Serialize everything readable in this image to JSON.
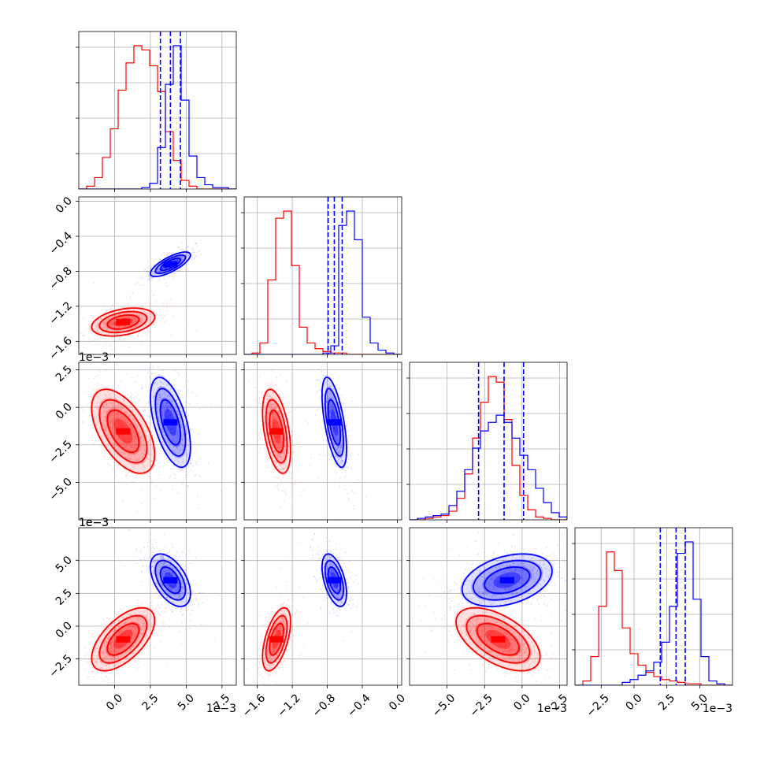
{
  "colors": {
    "red": "#ff0000",
    "blue": "#0000ff",
    "grid": "#b0b0b0",
    "axis": "#000000"
  },
  "chart_data": {
    "type": "corner",
    "parameters": [
      {
        "range": [
          -2.5,
          8.5
        ],
        "ticks": [
          0.0,
          2.5,
          5.0,
          7.5
        ],
        "tick_labels": [
          "0.0",
          "2.5",
          "5.0",
          "7.5"
        ]
      },
      {
        "range": [
          -1.75,
          0.05
        ],
        "ticks": [
          -1.6,
          -1.2,
          -0.8,
          -0.4,
          0.0
        ],
        "tick_labels": [
          "−1.6",
          "−1.2",
          "−0.8",
          "−0.4",
          "0.0"
        ]
      },
      {
        "range": [
          -7.5,
          3.0
        ],
        "ticks": [
          -5.0,
          -2.5,
          0.0,
          2.5
        ],
        "tick_labels": [
          "−5.0",
          "−2.5",
          "0.0",
          "2.5"
        ]
      },
      {
        "range": [
          -4.5,
          7.5
        ],
        "ticks": [
          -2.5,
          0.0,
          2.5,
          5.0
        ],
        "tick_labels": [
          "−2.5",
          "0.0",
          "2.5",
          "5.0"
        ]
      }
    ],
    "offset_label": "1e−3",
    "series": [
      {
        "color": "#ff0000",
        "mean": [
          0.6,
          -1.38,
          -1.6,
          -1.0
        ],
        "std": [
          1.1,
          0.08,
          1.4,
          1.2
        ],
        "hist": [
          {
            "bin_start": -2.5,
            "bin_width": 0.55,
            "counts": [
              0,
              2,
              8,
              22,
              42,
              69,
              88,
              100,
              97,
              86,
              68,
              40,
              20,
              6,
              2,
              0,
              0,
              0,
              0,
              0
            ]
          },
          {
            "bin_start": -1.75,
            "bin_width": 0.09,
            "counts": [
              0,
              1,
              8,
              52,
              95,
              100,
              62,
              19,
              8,
              4,
              2,
              1,
              1,
              0,
              0,
              0,
              0,
              0,
              0,
              0
            ]
          },
          {
            "bin_start": -7.5,
            "bin_width": 0.525,
            "counts": [
              0,
              0,
              1,
              2,
              3,
              6,
              15,
              32,
              57,
              82,
              100,
              96,
              70,
              38,
              17,
              7,
              2,
              1,
              0,
              0
            ]
          },
          {
            "bin_start": -4.5,
            "bin_width": 0.6,
            "counts": [
              0,
              3,
              20,
              55,
              93,
              80,
              40,
              22,
              14,
              9,
              6,
              4,
              3,
              2,
              1,
              1,
              0,
              0,
              0,
              0
            ]
          }
        ]
      },
      {
        "color": "#0000ff",
        "mean": [
          3.9,
          -0.72,
          -1.0,
          3.5
        ],
        "std": [
          0.7,
          0.07,
          1.5,
          1.0
        ],
        "quantiles": [
          [
            3.2,
            3.9,
            4.6
          ],
          [
            -0.79,
            -0.72,
            -0.63
          ],
          [
            -2.9,
            -1.2,
            0.1
          ],
          [
            2.0,
            3.2,
            3.9
          ]
        ],
        "hist": [
          {
            "bin_start": -2.5,
            "bin_width": 0.55,
            "counts": [
              0,
              0,
              0,
              0,
              0,
              0,
              0,
              0,
              1,
              4,
              29,
              73,
              100,
              62,
              23,
              8,
              3,
              1,
              1,
              0
            ]
          },
          {
            "bin_start": -1.75,
            "bin_width": 0.09,
            "counts": [
              0,
              0,
              0,
              0,
              0,
              0,
              0,
              0,
              0,
              0,
              1,
              6,
              90,
              100,
              80,
              26,
              8,
              3,
              1,
              0
            ]
          },
          {
            "bin_start": -7.5,
            "bin_width": 0.525,
            "counts": [
              0,
              1,
              2,
              3,
              4,
              10,
              20,
              35,
              50,
              62,
              68,
              73,
              68,
              57,
              45,
              35,
              22,
              12,
              5,
              2
            ]
          },
          {
            "bin_start": -4.5,
            "bin_width": 0.6,
            "counts": [
              0,
              0,
              0,
              0,
              0,
              0,
              2,
              4,
              7,
              10,
              16,
              30,
              55,
              92,
              100,
              60,
              20,
              3,
              1,
              0
            ]
          }
        ]
      }
    ],
    "pair_correlations": {
      "1_0": {
        "red": 0.35,
        "blue": 0.75
      },
      "2_0": {
        "red": -0.55,
        "blue": -0.55
      },
      "2_1": {
        "red": -0.45,
        "blue": -0.6
      },
      "3_0": {
        "red": 0.6,
        "blue": -0.5
      },
      "3_1": {
        "red": 0.55,
        "blue": -0.5
      },
      "3_2": {
        "red": -0.55,
        "blue": 0.35
      }
    },
    "grid": true
  }
}
